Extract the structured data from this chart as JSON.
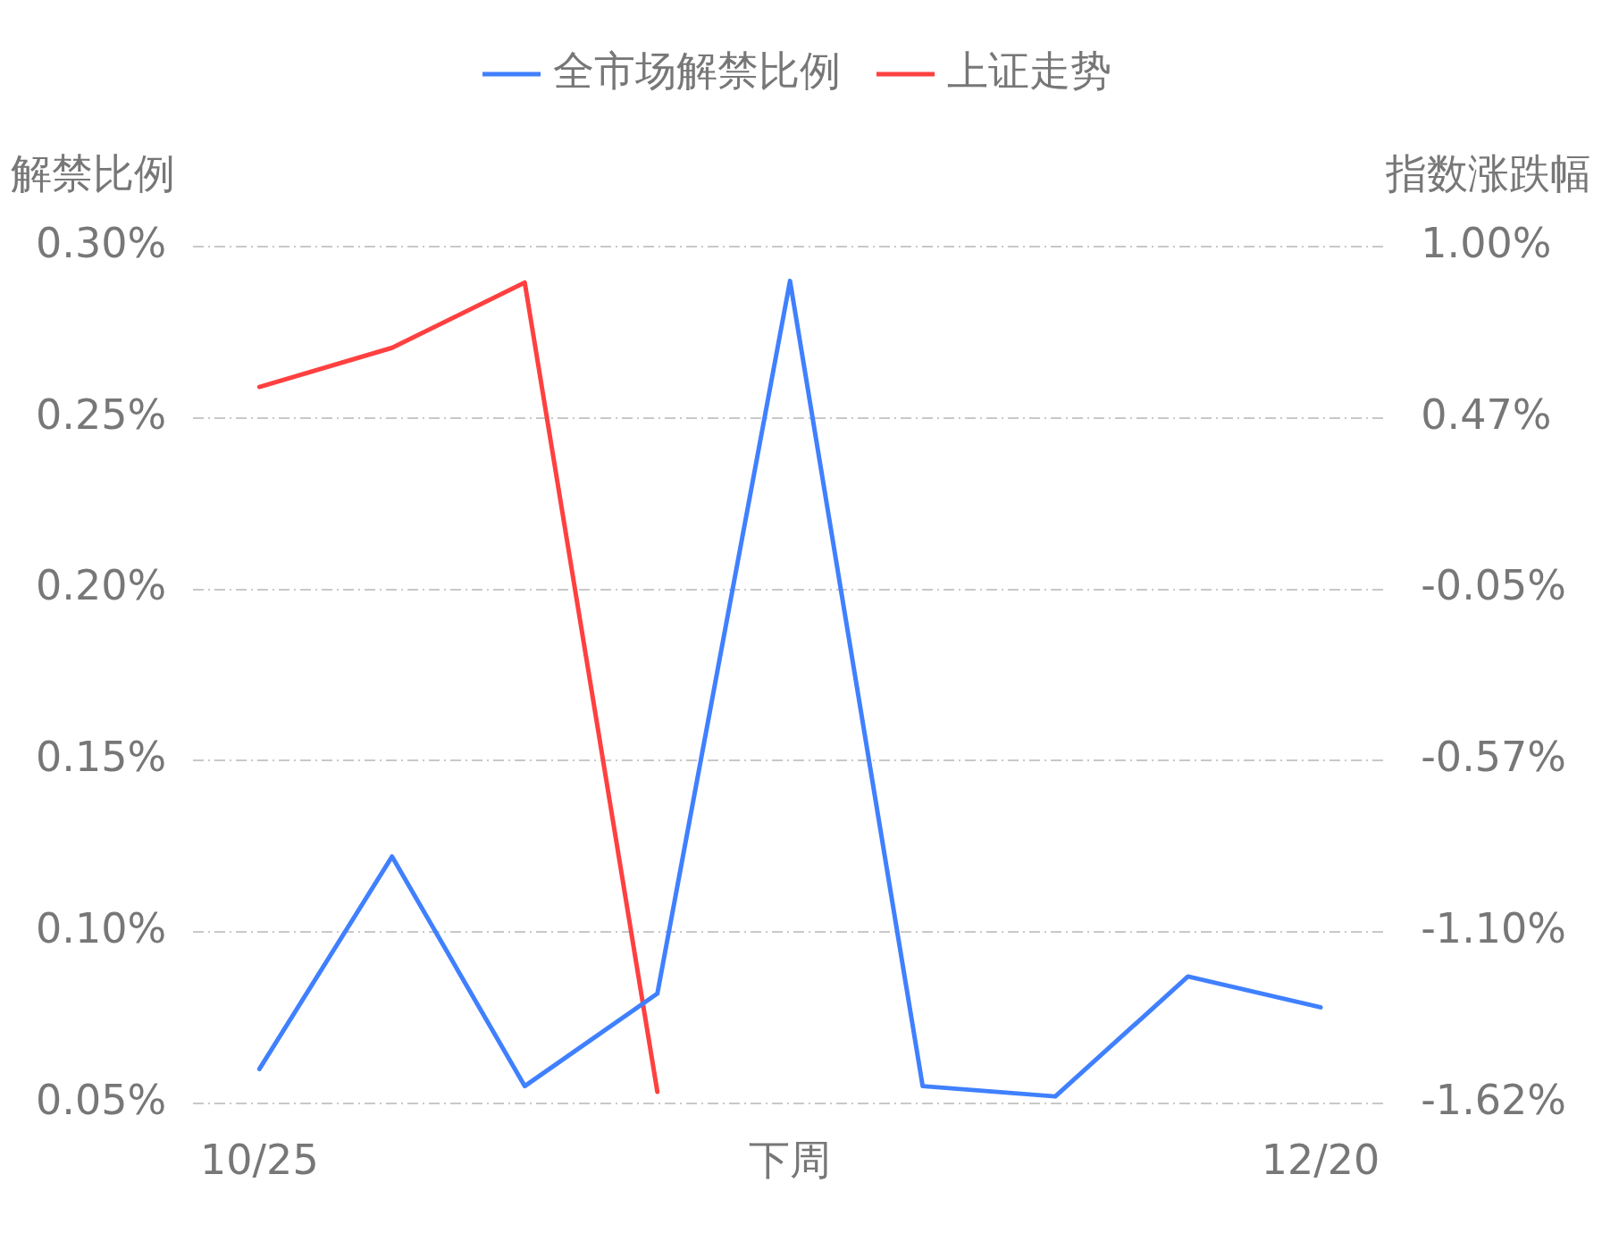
{
  "chart_data": {
    "type": "line",
    "categories": [
      "10/25",
      null,
      null,
      null,
      "下周",
      null,
      null,
      null,
      "12/20"
    ],
    "ylabel": "解禁比例",
    "y2label": "指数涨跌幅",
    "ylim": [
      0.05,
      0.3
    ],
    "yticks": [
      {
        "value": 0.05,
        "label": "0.05%"
      },
      {
        "value": 0.1,
        "label": "0.10%"
      },
      {
        "value": 0.15,
        "label": "0.15%"
      },
      {
        "value": 0.2,
        "label": "0.20%"
      },
      {
        "value": 0.25,
        "label": "0.25%"
      },
      {
        "value": 0.3,
        "label": "0.30%"
      }
    ],
    "y2lim": [
      -1.625,
      1.0
    ],
    "y2ticks": [
      {
        "value": -1.625,
        "label": "-1.62%"
      },
      {
        "value": -1.1,
        "label": "-1.10%"
      },
      {
        "value": -0.575,
        "label": "-0.57%"
      },
      {
        "value": -0.05,
        "label": "-0.05%"
      },
      {
        "value": 0.475,
        "label": "0.47%"
      },
      {
        "value": 1.0,
        "label": "1.00%"
      }
    ],
    "series": [
      {
        "name": "全市场解禁比例",
        "color": "#4080ff",
        "values": [
          0.06,
          0.122,
          0.055,
          0.082,
          0.29,
          0.055,
          0.052,
          0.087,
          0.078
        ]
      },
      {
        "name": "上证走势",
        "color": "#ff4040",
        "axis": "y2",
        "values": [
          0.57,
          0.69,
          0.89,
          -1.59,
          null,
          null,
          null,
          null,
          null
        ]
      }
    ],
    "grid": "y",
    "legend": "top",
    "marker": "none",
    "line_style": "solid"
  }
}
